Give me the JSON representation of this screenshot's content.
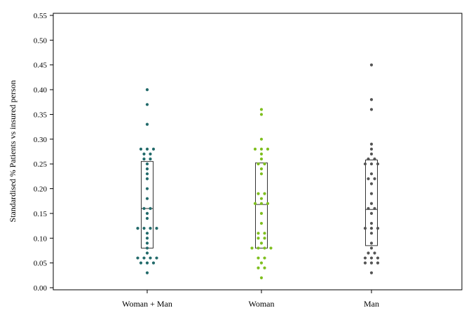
{
  "chart_data": {
    "type": "scatter",
    "subtype": "dot-plot-with-box",
    "title": "",
    "xlabel": "",
    "ylabel": "Standardised % Patients vs insured person",
    "ylim": [
      0,
      0.55
    ],
    "yticks": [
      "0.00",
      "0.05",
      "0.10",
      "0.15",
      "0.20",
      "0.25",
      "0.30",
      "0.35",
      "0.40",
      "0.45",
      "0.50",
      "0.55"
    ],
    "grid": false,
    "categories": [
      "Woman + Man",
      "Woman",
      "Man"
    ],
    "series": [
      {
        "category": "Woman + Man",
        "color": "#236b6b",
        "box": {
          "q1": 0.08,
          "median": 0.16,
          "q3": 0.255
        },
        "points": [
          0.4,
          0.37,
          0.33,
          0.28,
          0.28,
          0.28,
          0.27,
          0.27,
          0.26,
          0.26,
          0.25,
          0.24,
          0.23,
          0.22,
          0.2,
          0.18,
          0.16,
          0.16,
          0.15,
          0.14,
          0.12,
          0.12,
          0.12,
          0.12,
          0.11,
          0.1,
          0.09,
          0.08,
          0.07,
          0.06,
          0.06,
          0.06,
          0.06,
          0.05,
          0.05,
          0.05,
          0.03
        ]
      },
      {
        "category": "Woman",
        "color": "#7fbf1f",
        "box": {
          "q1": 0.08,
          "median": 0.168,
          "q3": 0.252
        },
        "points": [
          0.36,
          0.35,
          0.3,
          0.28,
          0.28,
          0.28,
          0.27,
          0.26,
          0.25,
          0.25,
          0.24,
          0.23,
          0.19,
          0.19,
          0.18,
          0.17,
          0.17,
          0.17,
          0.15,
          0.13,
          0.11,
          0.11,
          0.1,
          0.1,
          0.09,
          0.08,
          0.08,
          0.08,
          0.08,
          0.06,
          0.06,
          0.05,
          0.04,
          0.04,
          0.02
        ]
      },
      {
        "category": "Man",
        "color": "#555555",
        "box": {
          "q1": 0.085,
          "median": 0.158,
          "q3": 0.258
        },
        "points": [
          0.45,
          0.38,
          0.36,
          0.29,
          0.28,
          0.27,
          0.26,
          0.26,
          0.25,
          0.25,
          0.25,
          0.23,
          0.22,
          0.22,
          0.21,
          0.19,
          0.17,
          0.16,
          0.16,
          0.15,
          0.13,
          0.12,
          0.12,
          0.12,
          0.11,
          0.09,
          0.08,
          0.07,
          0.07,
          0.06,
          0.06,
          0.06,
          0.05,
          0.05,
          0.05,
          0.03
        ]
      }
    ]
  }
}
